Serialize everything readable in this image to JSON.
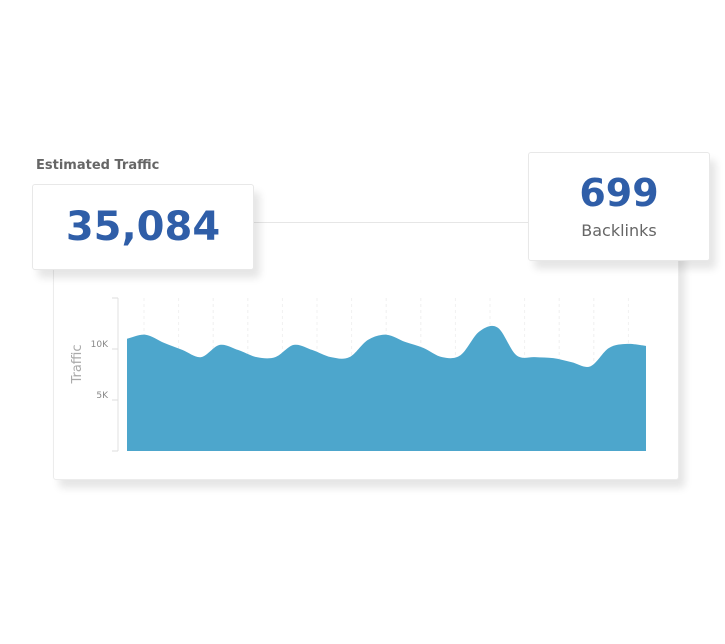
{
  "heading": "Estimated Traffic",
  "traffic_value": "35,084",
  "backlinks": {
    "value": "699",
    "label": "Backlinks"
  },
  "colors": {
    "area": "#4da6cc",
    "number": "#2f5ea8"
  },
  "chart_data": {
    "type": "area",
    "title": "",
    "xlabel": "",
    "ylabel": "Traffic",
    "ylim": [
      0,
      15000
    ],
    "yticks": [
      {
        "value": 5000,
        "label": "5K"
      },
      {
        "value": 10000,
        "label": "10K"
      }
    ],
    "grid": "vertical dashed",
    "values": [
      11000,
      11400,
      10600,
      9900,
      9200,
      10400,
      9900,
      9200,
      9200,
      10400,
      9900,
      9200,
      9200,
      10900,
      11400,
      10700,
      10100,
      9200,
      9400,
      11700,
      12100,
      9400,
      9200,
      9100,
      8700,
      8300,
      10100,
      10500,
      10300
    ]
  }
}
